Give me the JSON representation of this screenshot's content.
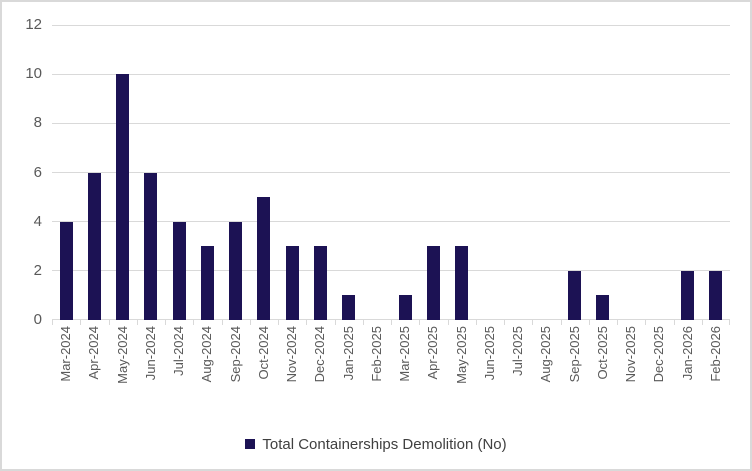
{
  "chart_data": {
    "type": "bar",
    "title": "",
    "categories": [
      "Mar-2024",
      "Apr-2024",
      "May-2024",
      "Jun-2024",
      "Jul-2024",
      "Aug-2024",
      "Sep-2024",
      "Oct-2024",
      "Nov-2024",
      "Dec-2024",
      "Jan-2025",
      "Feb-2025",
      "Mar-2025",
      "Apr-2025",
      "May-2025",
      "Jun-2025",
      "Jul-2025",
      "Aug-2025",
      "Sep-2025",
      "Oct-2025",
      "Nov-2025",
      "Dec-2025",
      "Jan-2026",
      "Feb-2026"
    ],
    "values": [
      4,
      6,
      10,
      6,
      4,
      3,
      4,
      5,
      3,
      3,
      1,
      0,
      1,
      3,
      3,
      0,
      0,
      0,
      2,
      1,
      0,
      0,
      2,
      2
    ],
    "series_name": "Total Containerships Demolition (No)",
    "xlabel": "",
    "ylabel": "",
    "ylim": [
      0,
      12
    ],
    "yticks": [
      0,
      2,
      4,
      6,
      8,
      10,
      12
    ],
    "grid": true,
    "legend_position": "bottom"
  },
  "legend": {
    "label": "Total Containerships Demolition (No)"
  },
  "colors": {
    "bar": "#1c1254",
    "gridline": "#d9d9d9",
    "axis_text": "#595959",
    "legend_text": "#404040",
    "frame_border": "#d9d9d9",
    "background": "#ffffff"
  }
}
